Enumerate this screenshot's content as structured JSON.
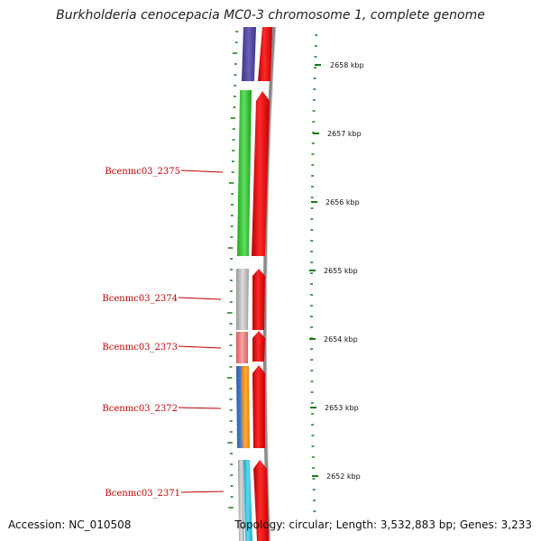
{
  "title": "Burkholderia cenocepacia MC0-3 chromosome 1, complete genome",
  "accession": "Accession: NC_010508",
  "topology": "Topology: circular; Length: 3,532,883 bp; Genes: 3,233",
  "scale": {
    "ticks": [
      {
        "label": "2658 kbp"
      },
      {
        "label": "2657 kbp"
      },
      {
        "label": "2656 kbp"
      },
      {
        "label": "2655 kbp"
      },
      {
        "label": "2654 kbp"
      },
      {
        "label": "2653 kbp"
      },
      {
        "label": "2652 kbp"
      }
    ]
  },
  "gene_labels": [
    {
      "label": "Bcenmc03_2375"
    },
    {
      "label": "Bcenmc03_2374"
    },
    {
      "label": "Bcenmc03_2373"
    },
    {
      "label": "Bcenmc03_2372"
    },
    {
      "label": "Bcenmc03_2371"
    }
  ],
  "colors": {
    "forward_strand": "#ee1111",
    "backbone": "#8a8a8a",
    "label_red": "#c00000",
    "tick_green": "#1a7a1a"
  }
}
